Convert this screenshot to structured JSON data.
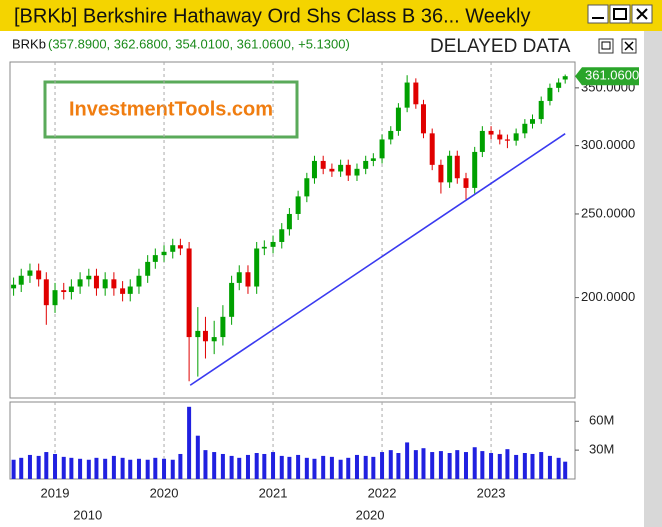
{
  "window": {
    "title": "[BRKb] Berkshire Hathaway Ord Shs Class B  36...  Weekly"
  },
  "chart_data": {
    "type": "candlestick",
    "symbol": "BRKb",
    "quote": "(357.8900, 362.6800, 354.0100, 361.0600, +5.1300)",
    "badge": "DELAYED DATA",
    "watermark": "InvestmentTools.com",
    "last_label": "361.0600",
    "log_scale": true,
    "xgrid": true,
    "up_color": "#00a000",
    "down_color": "#e00000",
    "volume_color": "#2020e0",
    "x": [
      2018.62,
      2018.69,
      2018.77,
      2018.85,
      2018.92,
      2019.0,
      2019.08,
      2019.15,
      2019.23,
      2019.31,
      2019.38,
      2019.46,
      2019.54,
      2019.62,
      2019.69,
      2019.77,
      2019.85,
      2019.92,
      2020.0,
      2020.08,
      2020.15,
      2020.23,
      2020.31,
      2020.38,
      2020.46,
      2020.54,
      2020.62,
      2020.69,
      2020.77,
      2020.85,
      2020.92,
      2021.0,
      2021.08,
      2021.15,
      2021.23,
      2021.31,
      2021.38,
      2021.46,
      2021.54,
      2021.62,
      2021.69,
      2021.77,
      2021.85,
      2021.92,
      2022.0,
      2022.08,
      2022.15,
      2022.23,
      2022.31,
      2022.38,
      2022.46,
      2022.54,
      2022.62,
      2022.69,
      2022.77,
      2022.85,
      2022.92,
      2023.0,
      2023.08,
      2023.15,
      2023.23,
      2023.31,
      2023.38,
      2023.46,
      2023.54,
      2023.62,
      2023.68
    ],
    "open": [
      205,
      207,
      212,
      215,
      210,
      196,
      204,
      203,
      206,
      210,
      212,
      205,
      210,
      205,
      202,
      206,
      212,
      220,
      224,
      226,
      230,
      228,
      180,
      183,
      178,
      180,
      190,
      208,
      214,
      206,
      228,
      229,
      232,
      240,
      250,
      262,
      275,
      288,
      282,
      280,
      285,
      277,
      282,
      288,
      290,
      305,
      312,
      332,
      355,
      335,
      310,
      285,
      272,
      292,
      275,
      268,
      295,
      312,
      309,
      305,
      304,
      310,
      318,
      322,
      338,
      350,
      357.89
    ],
    "high": [
      211,
      216,
      219,
      219,
      214,
      208,
      208,
      210,
      214,
      216,
      216,
      214,
      214,
      209,
      210,
      216,
      224,
      228,
      230,
      234,
      234,
      232,
      195,
      190,
      188,
      196,
      212,
      218,
      218,
      232,
      233,
      236,
      244,
      254,
      266,
      279,
      292,
      292,
      286,
      289,
      289,
      286,
      292,
      294,
      309,
      316,
      336,
      362,
      359,
      339,
      314,
      289,
      296,
      296,
      279,
      299,
      316,
      316,
      313,
      309,
      314,
      322,
      326,
      342,
      354,
      359,
      362.68
    ],
    "low": [
      201,
      203,
      208,
      206,
      186,
      192,
      199,
      199,
      202,
      206,
      201,
      201,
      201,
      198,
      198,
      202,
      208,
      216,
      220,
      222,
      224,
      160,
      162,
      170,
      172,
      176,
      186,
      204,
      202,
      202,
      224,
      225,
      228,
      236,
      246,
      258,
      271,
      278,
      276,
      276,
      273,
      273,
      278,
      284,
      286,
      301,
      308,
      328,
      331,
      306,
      281,
      264,
      268,
      271,
      260,
      264,
      291,
      305,
      301,
      298,
      300,
      306,
      314,
      318,
      334,
      346,
      354.01
    ],
    "close": [
      207,
      212,
      215,
      210,
      196,
      204,
      203,
      206,
      210,
      212,
      205,
      210,
      205,
      202,
      206,
      212,
      220,
      224,
      226,
      230,
      228,
      180,
      183,
      178,
      180,
      190,
      208,
      214,
      206,
      228,
      229,
      232,
      240,
      250,
      262,
      275,
      288,
      282,
      280,
      285,
      277,
      282,
      288,
      290,
      305,
      312,
      332,
      355,
      335,
      310,
      285,
      272,
      292,
      275,
      268,
      295,
      312,
      309,
      305,
      304,
      310,
      318,
      322,
      338,
      350,
      355,
      361.06
    ],
    "volume": [
      20000000,
      22000000,
      25000000,
      24000000,
      28000000,
      26000000,
      23000000,
      22000000,
      21000000,
      20000000,
      22000000,
      21000000,
      24000000,
      22000000,
      20000000,
      21000000,
      20000000,
      22000000,
      21000000,
      20000000,
      26000000,
      75000000,
      45000000,
      30000000,
      28000000,
      26000000,
      24000000,
      22000000,
      25000000,
      27000000,
      26000000,
      28000000,
      24000000,
      23000000,
      25000000,
      22000000,
      21000000,
      24000000,
      23000000,
      20000000,
      22000000,
      25000000,
      24000000,
      23000000,
      28000000,
      30000000,
      27000000,
      38000000,
      30000000,
      32000000,
      28000000,
      29000000,
      27000000,
      30000000,
      28000000,
      33000000,
      29000000,
      27000000,
      26000000,
      31000000,
      25000000,
      27000000,
      26000000,
      28000000,
      24000000,
      22000000,
      18000000
    ],
    "xlim": [
      2018.587,
      2023.77
    ],
    "xticks": [
      2019,
      2020,
      2021,
      2022,
      2023
    ],
    "xlabels2": [
      {
        "value": 2019.3,
        "label": "2010"
      },
      {
        "value": 2021.89,
        "label": "2020"
      }
    ],
    "ylim": [
      153,
      375
    ],
    "yticks": [
      {
        "value": 200,
        "label": "200.0000"
      },
      {
        "value": 250,
        "label": "250.0000"
      },
      {
        "value": 300,
        "label": "300.0000"
      },
      {
        "value": 350,
        "label": "350.0000"
      }
    ],
    "vlim": [
      0,
      80000000
    ],
    "vticks": [
      {
        "value": 30000000,
        "label": "30M"
      },
      {
        "value": 60000000,
        "label": "60M"
      }
    ],
    "trendline": {
      "x": [
        2020.24,
        2023.68
      ],
      "y": [
        158.3,
        309.7
      ],
      "color": "#3a3af0"
    }
  }
}
